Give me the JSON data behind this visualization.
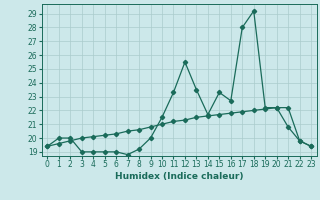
{
  "title": "",
  "xlabel": "Humidex (Indice chaleur)",
  "bg_color": "#cce8ea",
  "grid_color": "#aacccc",
  "line_color": "#1a6b5a",
  "xlim": [
    -0.5,
    23.5
  ],
  "ylim": [
    18.7,
    29.7
  ],
  "xticks": [
    0,
    1,
    2,
    3,
    4,
    5,
    6,
    7,
    8,
    9,
    10,
    11,
    12,
    13,
    14,
    15,
    16,
    17,
    18,
    19,
    20,
    21,
    22,
    23
  ],
  "yticks": [
    19,
    20,
    21,
    22,
    23,
    24,
    25,
    26,
    27,
    28,
    29
  ],
  "line1_x": [
    0,
    1,
    2,
    3,
    4,
    5,
    6,
    7,
    8,
    9,
    10,
    11,
    12,
    13,
    14,
    15,
    16,
    17,
    18,
    19,
    20,
    21,
    22,
    23
  ],
  "line1_y": [
    19.4,
    20.0,
    20.0,
    19.0,
    19.0,
    19.0,
    19.0,
    18.8,
    19.2,
    20.0,
    21.5,
    23.3,
    25.5,
    23.5,
    21.7,
    23.3,
    22.7,
    28.0,
    29.2,
    22.2,
    22.2,
    20.8,
    19.8,
    19.4
  ],
  "line2_x": [
    0,
    1,
    2,
    3,
    4,
    5,
    6,
    7,
    8,
    9,
    10,
    11,
    12,
    13,
    14,
    15,
    16,
    17,
    18,
    19,
    20,
    21,
    22,
    23
  ],
  "line2_y": [
    19.4,
    19.6,
    19.8,
    20.0,
    20.1,
    20.2,
    20.3,
    20.5,
    20.6,
    20.8,
    21.0,
    21.2,
    21.3,
    21.5,
    21.6,
    21.7,
    21.8,
    21.9,
    22.0,
    22.1,
    22.2,
    22.2,
    19.8,
    19.4
  ],
  "marker_size": 2.2,
  "linewidth": 0.9,
  "tick_fontsize": 5.5,
  "xlabel_fontsize": 6.5
}
